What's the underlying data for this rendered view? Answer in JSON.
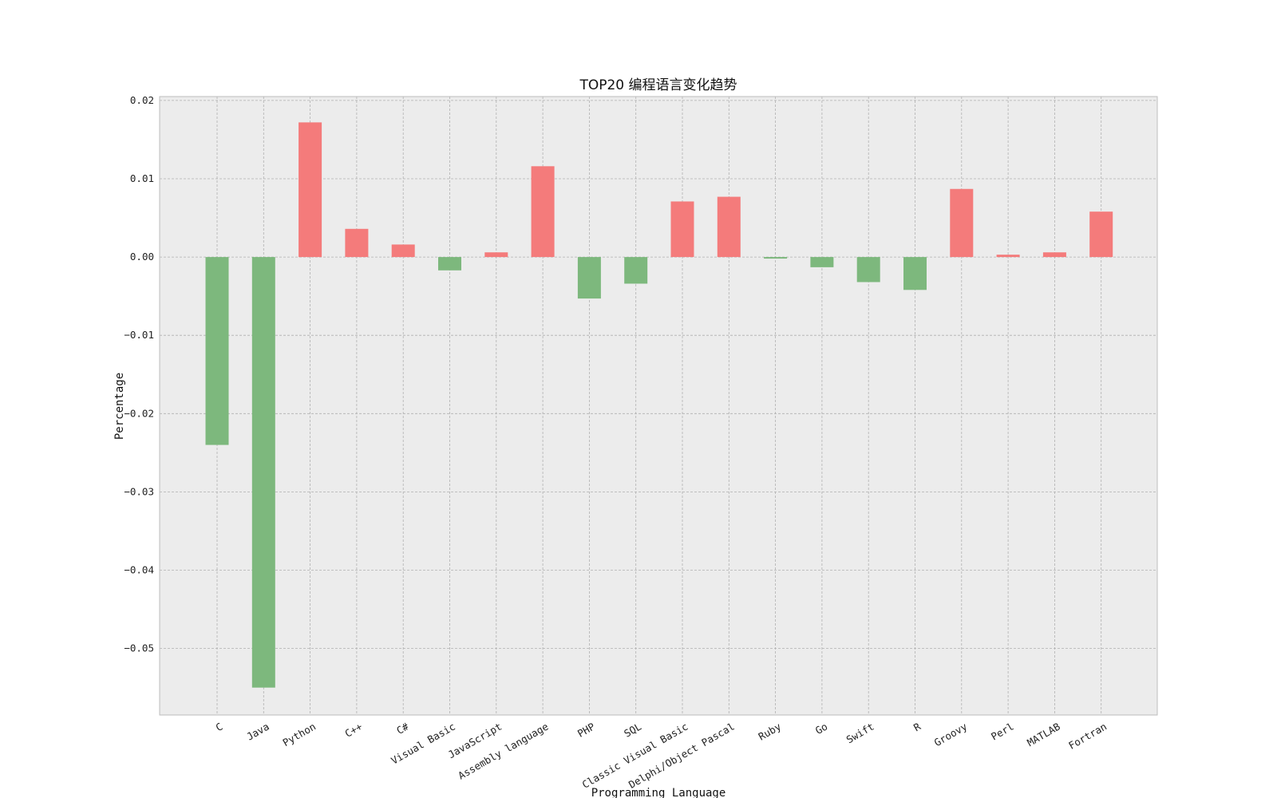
{
  "chart_data": {
    "type": "bar",
    "title": "TOP20 编程语言变化趋势",
    "xlabel": "Programming Language",
    "ylabel": "Percentage",
    "categories": [
      "C",
      "Java",
      "Python",
      "C++",
      "C#",
      "Visual Basic",
      "JavaScript",
      "Assembly language",
      "PHP",
      "SQL",
      "Classic Visual Basic",
      "Delphi/Object Pascal",
      "Ruby",
      "Go",
      "Swift",
      "R",
      "Groovy",
      "Perl",
      "MATLAB",
      "Fortran"
    ],
    "values": [
      -0.024,
      -0.055,
      0.0172,
      0.0036,
      0.0016,
      -0.0017,
      0.0006,
      0.0116,
      -0.0053,
      -0.0034,
      0.0071,
      0.0077,
      -0.0002,
      -0.0013,
      -0.0032,
      -0.0042,
      0.0087,
      0.0003,
      0.0006,
      0.0058
    ],
    "ylim": [
      -0.0585,
      0.0205
    ],
    "yticks": [
      0.02,
      0.01,
      0.0,
      -0.01,
      -0.02,
      -0.03,
      -0.04,
      -0.05
    ],
    "ytick_labels": [
      "0.02",
      "0.01",
      "0.00",
      "−0.01",
      "−0.02",
      "−0.03",
      "−0.04",
      "−0.05"
    ],
    "grid": true,
    "colors": {
      "positive": "#f47b7b",
      "negative": "#7db87d",
      "plot_background": "#ececec",
      "grid": "#b0b0b0",
      "frame": "#bdbdbd"
    }
  }
}
